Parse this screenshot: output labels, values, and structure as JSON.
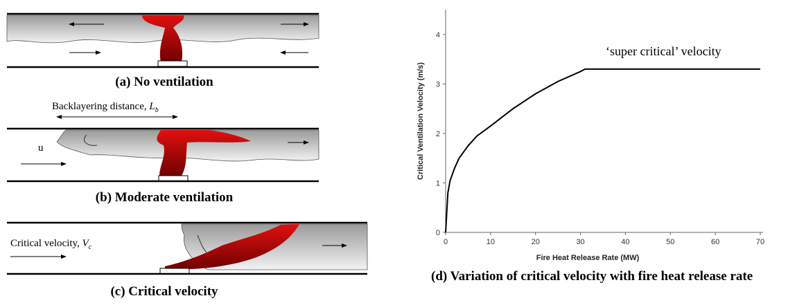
{
  "diagrams": [
    {
      "caption": "(a) No ventilation"
    },
    {
      "caption": "(b) Moderate ventilation",
      "span_label": {
        "text": "Backlayering distance,",
        "symbol": "L",
        "subscript": "b"
      },
      "flow_label": "u"
    },
    {
      "caption": "(c) Critical velocity",
      "flow_label": {
        "text": "Critical velocity,",
        "symbol": "V",
        "subscript": "c"
      }
    }
  ],
  "chart_data": {
    "type": "line",
    "caption": "(d) Variation of critical velocity with fire heat release rate",
    "x_label": "Fire Heat Release Rate (MW)",
    "y_label": "Critical Ventilation Velocity (m/s)",
    "annotation": "‘super critical’ velocity",
    "x": [
      0,
      0.5,
      1,
      2,
      3,
      5,
      7,
      10,
      15,
      20,
      25,
      30,
      31,
      40,
      50,
      60,
      70
    ],
    "values": [
      0,
      0.8,
      1.05,
      1.3,
      1.5,
      1.75,
      1.95,
      2.15,
      2.5,
      2.8,
      3.05,
      3.25,
      3.3,
      3.3,
      3.3,
      3.3,
      3.3
    ],
    "color": "#000000",
    "xlim": [
      0,
      70
    ],
    "ylim": [
      0,
      4.5
    ],
    "xticks": [
      0,
      10,
      20,
      30,
      40,
      50,
      60,
      70
    ],
    "yticks": [
      0,
      1,
      2,
      3,
      4
    ]
  }
}
